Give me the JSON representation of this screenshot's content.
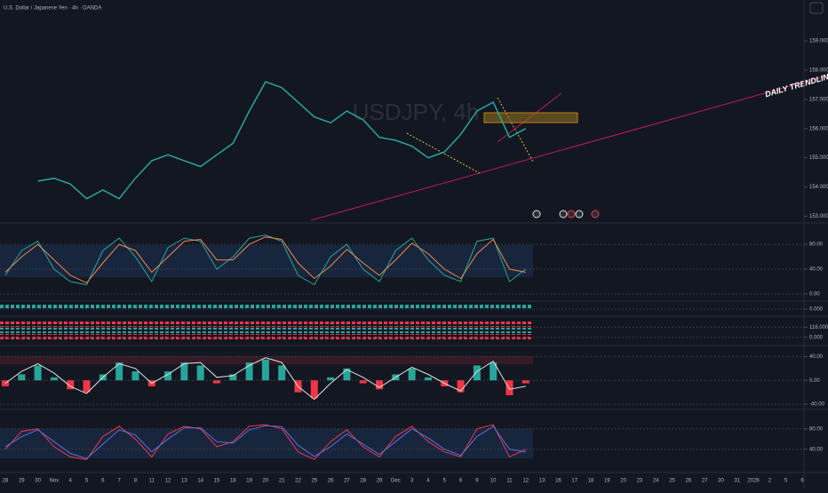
{
  "chart_data": [
    {
      "type": "line",
      "title": "U.S. Dollar / Japanese Yen · 4h · OANDA",
      "watermark": "USDJPY, 4h",
      "annotation": "DAILY TRENDLINE",
      "categories": [
        "28",
        "29",
        "30",
        "Nov",
        "4",
        "5",
        "6",
        "7",
        "8",
        "11",
        "12",
        "13",
        "14",
        "15",
        "18",
        "19",
        "20",
        "21",
        "22",
        "25",
        "26",
        "27",
        "28",
        "29",
        "Dec",
        "3",
        "4",
        "5",
        "6",
        "9",
        "10",
        "11",
        "12",
        "13",
        "16",
        "17",
        "18",
        "19",
        "20",
        "23",
        "24",
        "25",
        "26",
        "27",
        "30",
        "31",
        "2026",
        "2",
        "5",
        "6"
      ],
      "values": [
        null,
        null,
        154.2,
        154.3,
        154.1,
        153.6,
        153.9,
        153.6,
        154.3,
        154.9,
        155.1,
        154.9,
        154.7,
        155.1,
        155.5,
        156.6,
        157.6,
        157.4,
        156.9,
        156.4,
        156.2,
        156.6,
        156.3,
        155.7,
        155.6,
        155.4,
        155.0,
        155.2,
        155.8,
        156.6,
        156.9,
        155.7,
        156.0,
        null,
        null,
        null,
        null,
        null,
        null,
        null,
        null,
        null,
        null,
        null,
        null,
        null,
        null,
        null,
        null,
        null
      ],
      "color": "#26a69a",
      "ylim": [
        152.8,
        160.4
      ],
      "yticks": [
        {
          "value": 153,
          "label": "153.000"
        },
        {
          "value": 154,
          "label": "154.000"
        },
        {
          "value": 155,
          "label": "155.000"
        },
        {
          "value": 156,
          "label": "156.000"
        },
        {
          "value": 157,
          "label": "157.000"
        },
        {
          "value": 158,
          "label": "158.000"
        },
        {
          "value": 159,
          "label": "159.000"
        }
      ]
    },
    {
      "type": "line",
      "ylim": [
        -10,
        113
      ],
      "yticks": [
        {
          "value": 0,
          "label": "0.00"
        },
        {
          "value": 40,
          "label": "40.00"
        },
        {
          "value": 80,
          "label": "80.00"
        }
      ],
      "series": [
        {
          "color": "#26a69a",
          "values": [
            30,
            70,
            85,
            40,
            20,
            15,
            70,
            90,
            60,
            20,
            75,
            90,
            85,
            40,
            60,
            90,
            95,
            85,
            30,
            15,
            60,
            80,
            40,
            20,
            70,
            90,
            55,
            30,
            20,
            85,
            90,
            20,
            40,
            null,
            null,
            null,
            null,
            null,
            null,
            null,
            null,
            null,
            null,
            null,
            null,
            null,
            null,
            null,
            null,
            null
          ]
        },
        {
          "color": "#f0864a",
          "values": [
            35,
            60,
            80,
            55,
            30,
            18,
            50,
            80,
            70,
            35,
            60,
            85,
            88,
            55,
            55,
            80,
            92,
            88,
            50,
            25,
            45,
            72,
            50,
            30,
            55,
            82,
            65,
            40,
            25,
            65,
            88,
            40,
            35,
            null,
            null,
            null,
            null,
            null,
            null,
            null,
            null,
            null,
            null,
            null,
            null,
            null,
            null,
            null,
            null,
            null
          ]
        }
      ]
    },
    {
      "type": "signal",
      "ylim": [
        -1,
        1
      ],
      "yticks": [
        {
          "value": 0,
          "label": "0.000"
        }
      ]
    },
    {
      "type": "signal",
      "ylim": [
        -95,
        232
      ],
      "yticks": [
        {
          "value": 0,
          "label": "0.000"
        },
        {
          "value": 116,
          "label": "116.000"
        }
      ]
    },
    {
      "type": "bar",
      "ylim": [
        -49,
        57
      ],
      "yticks": [
        {
          "value": -40,
          "label": "-40.00"
        },
        {
          "value": 0,
          "label": "0.00"
        },
        {
          "value": 40,
          "label": "40.00"
        }
      ],
      "up_color": "#26a69a",
      "down_color": "#f23645",
      "series": [
        {
          "type": "bar",
          "values": [
            -10,
            10,
            25,
            5,
            -15,
            -20,
            10,
            30,
            15,
            -10,
            15,
            30,
            25,
            -5,
            10,
            30,
            35,
            25,
            -20,
            -30,
            5,
            20,
            -5,
            -15,
            10,
            20,
            5,
            -10,
            -20,
            25,
            30,
            -25,
            -5,
            null,
            null,
            null,
            null,
            null,
            null,
            null,
            null,
            null,
            null,
            null,
            null,
            null,
            null,
            null,
            null,
            null
          ]
        },
        {
          "type": "line",
          "color": "#e0e0e0",
          "values": [
            -5,
            15,
            28,
            12,
            -10,
            -22,
            5,
            28,
            20,
            -5,
            10,
            28,
            30,
            5,
            8,
            25,
            38,
            30,
            -10,
            -32,
            -5,
            18,
            5,
            -12,
            5,
            22,
            10,
            -5,
            -18,
            15,
            32,
            -15,
            -10,
            null,
            null,
            null,
            null,
            null,
            null,
            null,
            null,
            null,
            null,
            null,
            null,
            null,
            null,
            null,
            null,
            null
          ]
        }
      ]
    },
    {
      "type": "line",
      "ylim": [
        -2,
        116
      ],
      "yticks": [
        {
          "value": 40,
          "label": "40.00"
        },
        {
          "value": 80,
          "label": "80.00"
        }
      ],
      "series": [
        {
          "color": "#f23645",
          "values": [
            40,
            75,
            80,
            45,
            25,
            20,
            65,
            85,
            60,
            25,
            70,
            85,
            80,
            45,
            55,
            85,
            88,
            80,
            35,
            20,
            55,
            78,
            45,
            25,
            65,
            85,
            55,
            35,
            25,
            80,
            88,
            25,
            40,
            null,
            null,
            null,
            null,
            null,
            null,
            null,
            null,
            null,
            null,
            null,
            null,
            null,
            null,
            null,
            null,
            null
          ]
        },
        {
          "color": "#5b6ee8",
          "values": [
            45,
            65,
            78,
            55,
            32,
            22,
            50,
            78,
            68,
            35,
            60,
            82,
            82,
            55,
            52,
            78,
            86,
            84,
            48,
            26,
            45,
            70,
            50,
            30,
            55,
            80,
            62,
            40,
            28,
            65,
            85,
            40,
            35,
            null,
            null,
            null,
            null,
            null,
            null,
            null,
            null,
            null,
            null,
            null,
            null,
            null,
            null,
            null,
            null,
            null
          ]
        }
      ]
    }
  ]
}
